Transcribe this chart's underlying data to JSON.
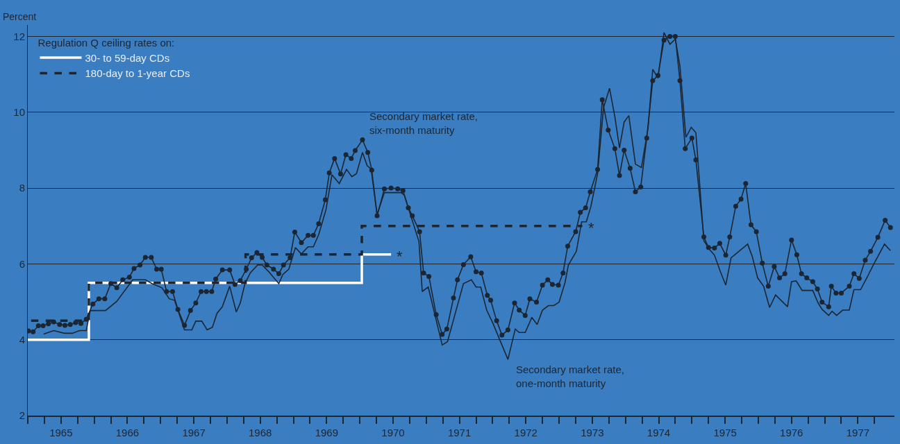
{
  "chart_data": {
    "type": "line",
    "ylabel": "Percent",
    "legend_title": "Regulation Q ceiling rates on:",
    "legend": "top left",
    "grid": "y",
    "xlim": [
      1965,
      1978.05
    ],
    "ylim": [
      2,
      12.3
    ],
    "yticks": [
      2,
      4,
      6,
      8,
      10,
      12
    ],
    "xticks": [
      {
        "value": 1965.0,
        "label": null
      },
      {
        "value": 1965.25,
        "label": null
      },
      {
        "value": 1965.5,
        "label": "1965"
      },
      {
        "value": 1965.75,
        "label": null
      },
      {
        "value": 1966.0,
        "label": null
      },
      {
        "value": 1966.25,
        "label": null
      },
      {
        "value": 1966.5,
        "label": "1966"
      },
      {
        "value": 1966.75,
        "label": null
      },
      {
        "value": 1967.0,
        "label": null
      },
      {
        "value": 1967.25,
        "label": null
      },
      {
        "value": 1967.5,
        "label": "1967"
      },
      {
        "value": 1967.75,
        "label": null
      },
      {
        "value": 1968.0,
        "label": null
      },
      {
        "value": 1968.25,
        "label": null
      },
      {
        "value": 1968.5,
        "label": "1968"
      },
      {
        "value": 1968.75,
        "label": null
      },
      {
        "value": 1969.0,
        "label": null
      },
      {
        "value": 1969.25,
        "label": null
      },
      {
        "value": 1969.5,
        "label": "1969"
      },
      {
        "value": 1969.75,
        "label": null
      },
      {
        "value": 1970.0,
        "label": null
      },
      {
        "value": 1970.25,
        "label": null
      },
      {
        "value": 1970.5,
        "label": "1970"
      },
      {
        "value": 1970.75,
        "label": null
      },
      {
        "value": 1971.0,
        "label": null
      },
      {
        "value": 1971.25,
        "label": null
      },
      {
        "value": 1971.5,
        "label": "1971"
      },
      {
        "value": 1971.75,
        "label": null
      },
      {
        "value": 1972.0,
        "label": null
      },
      {
        "value": 1972.25,
        "label": null
      },
      {
        "value": 1972.5,
        "label": "1972"
      },
      {
        "value": 1972.75,
        "label": null
      },
      {
        "value": 1973.0,
        "label": null
      },
      {
        "value": 1973.25,
        "label": null
      },
      {
        "value": 1973.5,
        "label": "1973"
      },
      {
        "value": 1973.75,
        "label": null
      },
      {
        "value": 1974.0,
        "label": null
      },
      {
        "value": 1974.25,
        "label": null
      },
      {
        "value": 1974.5,
        "label": "1974"
      },
      {
        "value": 1974.75,
        "label": null
      },
      {
        "value": 1975.0,
        "label": null
      },
      {
        "value": 1975.25,
        "label": null
      },
      {
        "value": 1975.5,
        "label": "1975"
      },
      {
        "value": 1975.75,
        "label": null
      },
      {
        "value": 1976.0,
        "label": null
      },
      {
        "value": 1976.25,
        "label": null
      },
      {
        "value": 1976.5,
        "label": "1976"
      },
      {
        "value": 1976.75,
        "label": null
      },
      {
        "value": 1977.0,
        "label": null
      },
      {
        "value": 1977.25,
        "label": null
      },
      {
        "value": 1977.5,
        "label": "1977"
      },
      {
        "value": 1977.75,
        "label": null
      }
    ],
    "series": [
      {
        "name": "30- to 59-day CDs",
        "type": "step",
        "color": "#ffffff",
        "line_style": "solid",
        "x": [
          1965.0,
          1965.92,
          1970.03,
          1970.47
        ],
        "values": [
          4,
          5.5,
          6.25,
          6.25
        ]
      },
      {
        "name": "180-day to 1-year CDs",
        "type": "step",
        "color": "#1c2633",
        "line_style": "dashed",
        "x": [
          1965.05,
          1965.92,
          1968.28,
          1970.03,
          1973.35
        ],
        "values": [
          4.5,
          5.5,
          6.25,
          7.0,
          7.0
        ]
      },
      {
        "type": "line",
        "color": "#1c2633",
        "line_style": "solid",
        "marker": "circle",
        "x": [
          1965.01,
          1965.08,
          1965.16,
          1965.23,
          1965.31,
          1965.39,
          1965.48,
          1965.56,
          1965.64,
          1965.72,
          1965.8,
          1965.88,
          1965.98,
          1966.07,
          1966.16,
          1966.25,
          1966.34,
          1966.43,
          1966.53,
          1966.6,
          1966.69,
          1966.77,
          1966.86,
          1966.94,
          1967.01,
          1967.09,
          1967.18,
          1967.26,
          1967.36,
          1967.45,
          1967.53,
          1967.61,
          1967.69,
          1967.77,
          1967.83,
          1967.93,
          1968.04,
          1968.12,
          1968.2,
          1968.29,
          1968.37,
          1968.45,
          1968.53,
          1968.6,
          1968.7,
          1968.78,
          1968.85,
          1968.95,
          1969.02,
          1969.12,
          1969.22,
          1969.3,
          1969.38,
          1969.48,
          1969.54,
          1969.62,
          1969.71,
          1969.79,
          1969.87,
          1969.93,
          1970.04,
          1970.12,
          1970.18,
          1970.26,
          1970.37,
          1970.47,
          1970.57,
          1970.65,
          1970.73,
          1970.79,
          1970.9,
          1970.96,
          1971.04,
          1971.15,
          1971.24,
          1971.31,
          1971.41,
          1971.47,
          1971.56,
          1971.67,
          1971.75,
          1971.83,
          1971.92,
          1971.97,
          1972.06,
          1972.14,
          1972.23,
          1972.33,
          1972.4,
          1972.49,
          1972.56,
          1972.66,
          1972.75,
          1972.83,
          1972.9,
          1972.99,
          1973.06,
          1973.13,
          1973.25,
          1973.32,
          1973.4,
          1973.47,
          1973.58,
          1973.65,
          1973.74,
          1973.84,
          1973.91,
          1973.98,
          1974.07,
          1974.15,
          1974.23,
          1974.32,
          1974.41,
          1974.49,
          1974.58,
          1974.67,
          1974.75,
          1974.82,
          1974.9,
          1975.0,
          1975.06,
          1975.18,
          1975.25,
          1975.34,
          1975.42,
          1975.51,
          1975.57,
          1975.66,
          1975.74,
          1975.81,
          1975.89,
          1975.97,
          1976.06,
          1976.15,
          1976.24,
          1976.32,
          1976.4,
          1976.5,
          1976.58,
          1976.65,
          1976.73,
          1976.82,
          1976.89,
          1976.96,
          1977.06,
          1977.1,
          1977.17,
          1977.25,
          1977.37,
          1977.44,
          1977.52,
          1977.61,
          1977.69,
          1977.8,
          1977.91,
          1977.99
        ],
        "values": [
          4.23,
          4.21,
          4.37,
          4.37,
          4.42,
          4.47,
          4.4,
          4.38,
          4.4,
          4.45,
          4.43,
          4.54,
          4.94,
          5.08,
          5.08,
          5.48,
          5.37,
          5.58,
          5.65,
          5.88,
          5.97,
          6.17,
          6.17,
          5.86,
          5.86,
          5.27,
          5.27,
          4.8,
          4.38,
          4.77,
          4.97,
          5.27,
          5.27,
          5.27,
          5.6,
          5.84,
          5.84,
          5.46,
          5.56,
          5.86,
          6.16,
          6.3,
          6.17,
          5.97,
          5.86,
          5.74,
          5.97,
          6.16,
          6.84,
          6.56,
          6.75,
          6.75,
          7.06,
          7.69,
          8.4,
          8.78,
          8.37,
          8.88,
          8.78,
          8.99,
          9.27,
          8.94,
          8.47,
          7.27,
          7.98,
          8.0,
          7.98,
          7.93,
          7.48,
          7.27,
          6.85,
          5.76,
          5.67,
          4.66,
          4.14,
          4.28,
          5.1,
          5.58,
          5.98,
          6.19,
          5.79,
          5.76,
          5.17,
          5.04,
          4.5,
          4.12,
          4.26,
          4.97,
          4.78,
          4.64,
          5.08,
          4.99,
          5.44,
          5.58,
          5.46,
          5.44,
          5.76,
          6.47,
          6.85,
          7.36,
          7.48,
          7.9,
          8.49,
          10.33,
          9.53,
          9.04,
          8.33,
          9.0,
          8.52,
          7.9,
          8.03,
          9.32,
          10.83,
          10.97,
          11.9,
          12.0,
          12.0,
          10.83,
          9.04,
          9.32,
          8.74,
          6.71,
          6.43,
          6.42,
          6.54,
          6.23,
          6.71,
          7.52,
          7.71,
          8.12,
          7.03,
          6.85,
          6.02,
          5.41,
          5.93,
          5.63,
          5.74,
          6.63,
          6.24,
          5.74,
          5.63,
          5.53,
          5.34,
          4.99,
          4.87,
          5.41,
          5.23,
          5.23,
          5.41,
          5.74,
          5.62,
          6.1,
          6.33,
          6.7,
          7.15,
          6.96
        ]
      },
      {
        "type": "line",
        "color": "#1c2633",
        "line_style": "solid",
        "marker": "none",
        "x": [
          1965.24,
          1965.39,
          1965.55,
          1965.67,
          1965.78,
          1965.88,
          1965.94,
          1966.17,
          1966.34,
          1966.58,
          1966.77,
          1966.87,
          1967.02,
          1967.13,
          1967.21,
          1967.36,
          1967.47,
          1967.53,
          1967.62,
          1967.7,
          1967.78,
          1967.85,
          1967.93,
          1968.04,
          1968.14,
          1968.2,
          1968.27,
          1968.35,
          1968.46,
          1968.53,
          1968.63,
          1968.78,
          1968.84,
          1968.93,
          1969.03,
          1969.12,
          1969.22,
          1969.3,
          1969.38,
          1969.49,
          1969.58,
          1969.69,
          1969.8,
          1969.88,
          1969.95,
          1970.04,
          1970.11,
          1970.17,
          1970.26,
          1970.37,
          1970.62,
          1970.67,
          1970.89,
          1970.94,
          1971.03,
          1971.24,
          1971.32,
          1971.48,
          1971.56,
          1971.68,
          1971.75,
          1971.82,
          1971.91,
          1972.0,
          1972.14,
          1972.23,
          1972.34,
          1972.4,
          1972.49,
          1972.59,
          1972.67,
          1972.75,
          1972.84,
          1972.92,
          1973.0,
          1973.09,
          1973.14,
          1973.26,
          1973.34,
          1973.41,
          1973.48,
          1973.58,
          1973.67,
          1973.76,
          1973.84,
          1973.91,
          1973.98,
          1974.05,
          1974.15,
          1974.24,
          1974.34,
          1974.41,
          1974.49,
          1974.58,
          1974.67,
          1974.75,
          1974.82,
          1974.91,
          1974.99,
          1975.06,
          1975.18,
          1975.27,
          1975.34,
          1975.43,
          1975.51,
          1975.59,
          1975.84,
          1975.91,
          1975.99,
          1976.08,
          1976.17,
          1976.26,
          1976.44,
          1976.5,
          1976.57,
          1976.66,
          1976.82,
          1976.9,
          1976.96,
          1977.06,
          1977.11,
          1977.18,
          1977.27,
          1977.37,
          1977.44,
          1977.54,
          1977.64,
          1977.74,
          1977.9,
          1977.99
        ],
        "values": [
          4.15,
          4.24,
          4.17,
          4.17,
          4.24,
          4.24,
          4.77,
          4.77,
          5.01,
          5.58,
          5.58,
          5.48,
          5.37,
          5.08,
          5.04,
          4.26,
          4.26,
          4.49,
          4.49,
          4.26,
          4.33,
          4.7,
          4.87,
          5.41,
          4.73,
          4.97,
          5.48,
          5.76,
          5.97,
          5.97,
          5.79,
          5.48,
          5.72,
          5.86,
          6.43,
          6.26,
          6.45,
          6.45,
          6.77,
          7.43,
          8.35,
          8.12,
          8.49,
          8.3,
          8.38,
          8.94,
          8.59,
          8.5,
          7.3,
          7.88,
          7.88,
          7.81,
          6.59,
          5.27,
          5.39,
          3.86,
          3.95,
          4.97,
          5.48,
          5.58,
          5.39,
          5.39,
          4.78,
          4.45,
          3.86,
          3.48,
          4.28,
          4.19,
          4.19,
          4.59,
          4.4,
          4.78,
          4.9,
          4.9,
          4.99,
          5.51,
          5.97,
          6.33,
          7.11,
          7.11,
          7.52,
          8.38,
          10.12,
          10.63,
          9.88,
          9.06,
          9.74,
          9.91,
          8.63,
          8.54,
          9.58,
          11.13,
          10.9,
          12.1,
          11.79,
          11.93,
          11.22,
          9.34,
          9.6,
          9.46,
          6.61,
          6.37,
          6.23,
          5.79,
          5.44,
          6.16,
          6.52,
          6.19,
          5.63,
          5.41,
          4.85,
          5.18,
          4.87,
          5.53,
          5.55,
          5.3,
          5.3,
          4.97,
          4.8,
          4.64,
          4.75,
          4.64,
          4.78,
          4.78,
          5.32,
          5.32,
          5.65,
          6.0,
          6.52,
          6.35
        ]
      }
    ],
    "annotations": [
      {
        "text": "Secondary market rate,\nsix-month maturity",
        "x": 1970.04,
        "y": 9.27
      },
      {
        "text": "Secondary market rate,\none-month maturity",
        "x": 1972.23,
        "y": 3.48
      },
      {
        "text": "*",
        "x": 1970.47,
        "y": 6.25
      },
      {
        "text": "*",
        "x": 1973.35,
        "y": 7.0
      }
    ]
  }
}
